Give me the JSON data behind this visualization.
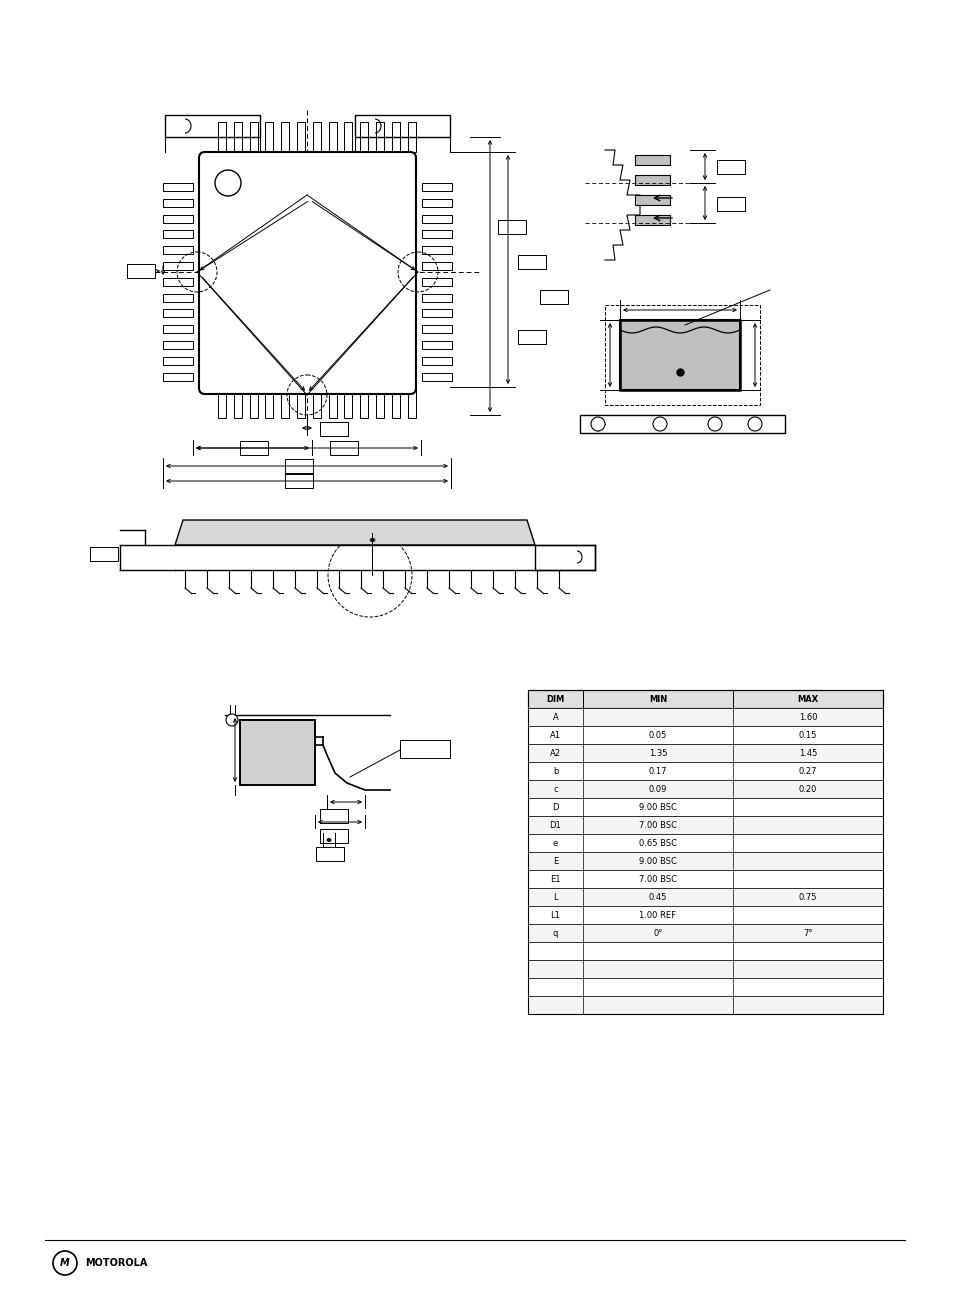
{
  "bg_color": "#ffffff",
  "line_color": "#000000",
  "fig_width": 9.54,
  "fig_height": 13.13,
  "dpi": 100,
  "table_rows": [
    [
      "A",
      "",
      "1.60"
    ],
    [
      "A1",
      "0.05",
      "0.15"
    ],
    [
      "A2",
      "1.35",
      "1.45"
    ],
    [
      "b",
      "0.17",
      "0.27"
    ],
    [
      "c",
      "0.09",
      "0.20"
    ],
    [
      "D",
      "9.00 BSC",
      ""
    ],
    [
      "D1",
      "7.00 BSC",
      ""
    ],
    [
      "e",
      "0.65 BSC",
      ""
    ],
    [
      "E",
      "9.00 BSC",
      ""
    ],
    [
      "E1",
      "7.00 BSC",
      ""
    ],
    [
      "L",
      "0.45",
      "0.75"
    ],
    [
      "L1",
      "1.00 REF",
      ""
    ],
    [
      "q",
      "0°",
      "7°"
    ],
    [
      "",
      "",
      ""
    ],
    [
      "",
      "",
      ""
    ],
    [
      "",
      "",
      ""
    ],
    [
      "",
      "",
      ""
    ]
  ],
  "footer_text": "MOTOROLA"
}
